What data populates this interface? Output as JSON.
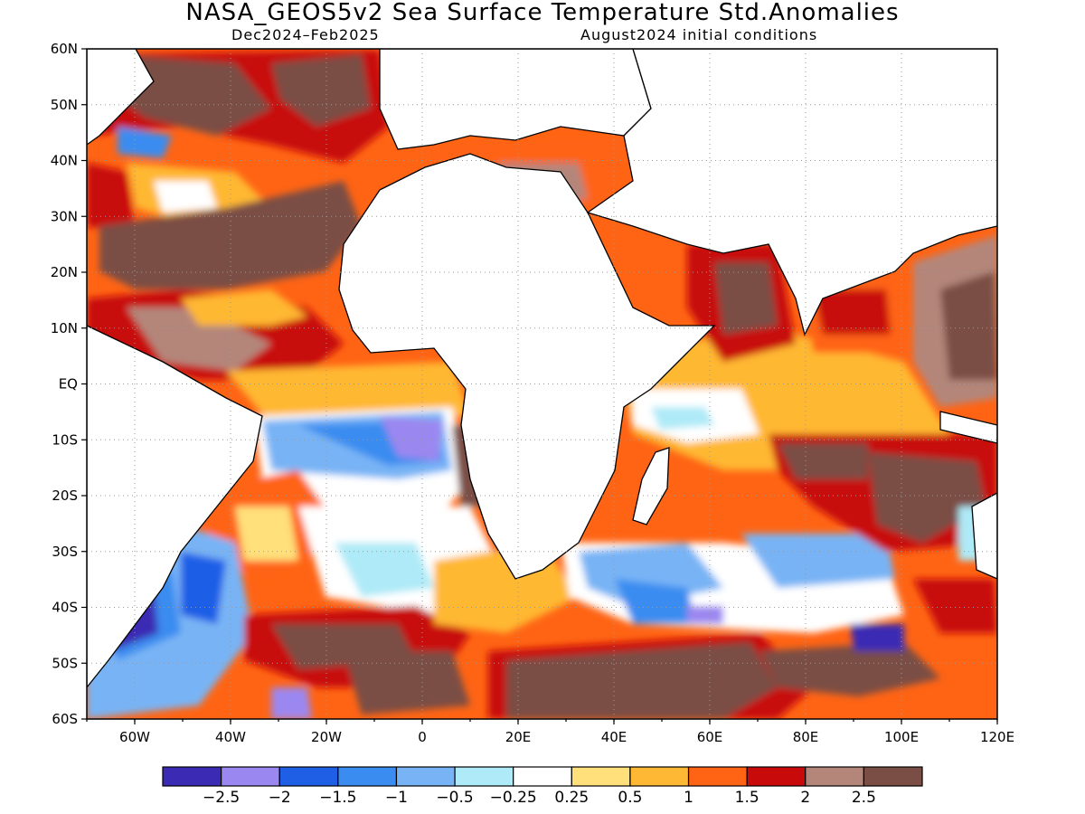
{
  "title": "NASA_GEOS5v2 Sea Surface Temperature Std.Anomalies",
  "subtitle_left": "Dec2024–Feb2025",
  "subtitle_right": "August2024 initial conditions",
  "map": {
    "lon_range": [
      -70,
      120
    ],
    "lat_range": [
      -60,
      60
    ],
    "lat_labels": [
      "60N",
      "50N",
      "40N",
      "30N",
      "20N",
      "10N",
      "EQ",
      "10S",
      "20S",
      "30S",
      "40S",
      "50S",
      "60S"
    ],
    "lon_labels": [
      "60W",
      "40W",
      "20W",
      "0",
      "20E",
      "40E",
      "60E",
      "80E",
      "100E",
      "120E"
    ]
  },
  "colorbar": {
    "colors": [
      "#3b2bb4",
      "#9b87f0",
      "#1e5fe6",
      "#3a8cf0",
      "#78b4f5",
      "#aeeaf7",
      "#ffffff",
      "#ffe07a",
      "#ffb833",
      "#ff6414",
      "#c80a0a",
      "#b4867a",
      "#7a4e44"
    ],
    "labels": [
      "−2.5",
      "−2",
      "−1.5",
      "−1",
      "−0.5",
      "−0.25",
      "0.25",
      "0.5",
      "1",
      "1.5",
      "2",
      "2.5"
    ]
  }
}
